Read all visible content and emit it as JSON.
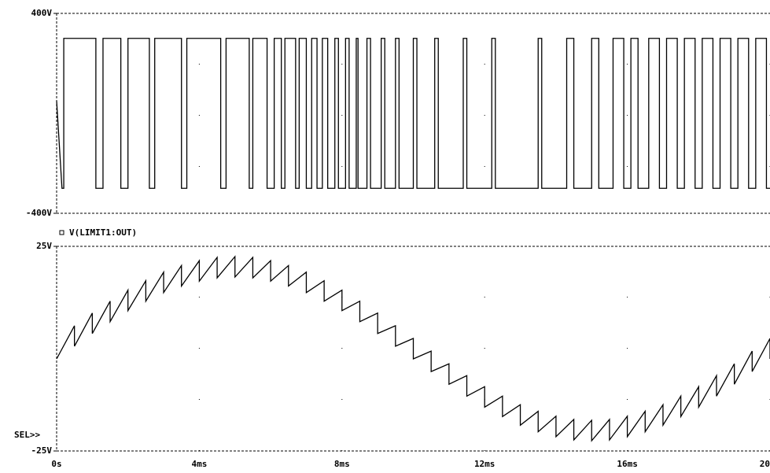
{
  "chart_data": [
    {
      "type": "line",
      "color": "#000000",
      "xlim": [
        0,
        20
      ],
      "ylim": [
        -400,
        400
      ],
      "yticks": [
        {
          "value": 400,
          "label": "400V"
        },
        {
          "value": -400,
          "label": "-400V"
        }
      ],
      "grid": true,
      "x": [
        0,
        0.15,
        0.2,
        0.2,
        1.1,
        1.1,
        1.3,
        1.3,
        1.8,
        1.8,
        2.0,
        2.0,
        2.6,
        2.6,
        2.75,
        2.75,
        3.5,
        3.5,
        3.65,
        3.65,
        4.6,
        4.6,
        4.75,
        4.75,
        5.4,
        5.4,
        5.5,
        5.5,
        5.9,
        5.9,
        6.1,
        6.1,
        6.3,
        6.3,
        6.4,
        6.4,
        6.7,
        6.7,
        6.8,
        6.8,
        7.0,
        7.0,
        7.15,
        7.15,
        7.3,
        7.3,
        7.45,
        7.45,
        7.6,
        7.6,
        7.8,
        7.8,
        7.9,
        7.9,
        8.1,
        8.1,
        8.2,
        8.2,
        8.4,
        8.4,
        8.45,
        8.45,
        8.7,
        8.7,
        8.8,
        8.8,
        9.1,
        9.1,
        9.2,
        9.2,
        9.5,
        9.5,
        9.6,
        9.6,
        10.0,
        10.0,
        10.1,
        10.1,
        10.6,
        10.6,
        10.7,
        10.7,
        11.4,
        11.4,
        11.5,
        11.5,
        12.2,
        12.2,
        12.3,
        12.3,
        13.5,
        13.5,
        13.6,
        13.6,
        14.3,
        14.3,
        14.5,
        14.5,
        15.0,
        15.0,
        15.2,
        15.2,
        15.6,
        15.6,
        15.9,
        15.9,
        16.1,
        16.1,
        16.3,
        16.3,
        16.6,
        16.6,
        16.9,
        16.9,
        17.1,
        17.1,
        17.4,
        17.4,
        17.6,
        17.6,
        17.9,
        17.9,
        18.1,
        18.1,
        18.4,
        18.4,
        18.6,
        18.6,
        18.9,
        18.9,
        19.1,
        19.1,
        19.4,
        19.4,
        19.6,
        19.6,
        19.9,
        19.9,
        20
      ],
      "values": [
        50,
        -300,
        -300,
        300,
        300,
        -300,
        -300,
        300,
        300,
        -300,
        -300,
        300,
        300,
        -300,
        -300,
        300,
        300,
        -300,
        -300,
        300,
        300,
        -300,
        -300,
        300,
        300,
        -300,
        -300,
        300,
        300,
        -300,
        -300,
        300,
        300,
        -300,
        -300,
        300,
        300,
        -300,
        -300,
        300,
        300,
        -300,
        -300,
        300,
        300,
        -300,
        -300,
        300,
        300,
        -300,
        -300,
        300,
        300,
        -300,
        -300,
        300,
        300,
        -300,
        -300,
        300,
        300,
        -300,
        -300,
        300,
        300,
        -300,
        -300,
        300,
        300,
        -300,
        -300,
        300,
        300,
        -300,
        -300,
        300,
        300,
        -300,
        -300,
        300,
        300,
        -300,
        -300,
        300,
        300,
        -300,
        -300,
        300,
        300,
        -300,
        -300,
        300,
        300,
        -300,
        -300,
        300,
        300,
        -300,
        -300,
        300,
        300,
        -300,
        -300,
        300,
        300,
        -300,
        -300,
        300,
        300,
        -300,
        -300,
        300,
        300,
        -300,
        -300,
        300,
        300,
        -300,
        -300,
        300,
        300,
        -300,
        -300,
        300,
        300,
        -300,
        -300,
        300,
        300,
        -300,
        -300,
        300,
        300,
        -300,
        -300,
        300,
        300,
        -300,
        -300
      ]
    },
    {
      "type": "line",
      "xlim": [
        0,
        20
      ],
      "ylim": [
        -25,
        25
      ],
      "xticks": [
        {
          "value": 0,
          "label": "0s"
        },
        {
          "value": 4,
          "label": "4ms"
        },
        {
          "value": 8,
          "label": "8ms"
        },
        {
          "value": 12,
          "label": "12ms"
        },
        {
          "value": 16,
          "label": "16ms"
        },
        {
          "value": 20,
          "label": "20ms"
        }
      ],
      "yticks": [
        {
          "value": 25,
          "label": "25V"
        },
        {
          "value": -25,
          "label": "-25V"
        }
      ],
      "grid": true,
      "annotation": "SEL>>",
      "x": [
        0,
        0.5,
        0.5,
        1,
        1,
        1.5,
        1.5,
        2,
        2,
        2.5,
        2.5,
        3,
        3,
        3.5,
        3.5,
        4,
        4,
        4.5,
        4.5,
        5,
        5,
        5.5,
        5.5,
        6,
        6,
        6.5,
        6.5,
        7,
        7,
        7.5,
        7.5,
        8,
        8,
        8.5,
        8.5,
        9,
        9,
        9.5,
        9.5,
        10,
        10,
        10.5,
        10.5,
        11,
        11,
        11.5,
        11.5,
        12,
        12,
        12.5,
        12.5,
        13,
        13,
        13.5,
        13.5,
        14,
        14,
        14.5,
        14.5,
        15,
        15,
        15.5,
        15.5,
        16,
        16,
        16.5,
        16.5,
        17,
        17,
        17.5,
        17.5,
        18,
        18,
        18.5,
        18.5,
        19,
        19,
        19.5,
        19.5,
        20,
        20
      ],
      "series": [
        {
          "name": "V(LIMIT1:OUT)",
          "color": "#000000",
          "values": [
            -2.5,
            5.6,
            0.6,
            8.7,
            3.7,
            11.6,
            6.6,
            14.3,
            9.3,
            16.6,
            11.6,
            18.7,
            13.7,
            20.3,
            15.3,
            21.5,
            16.5,
            22.3,
            17.3,
            22.5,
            17.5,
            22.3,
            17.3,
            21.5,
            16.5,
            20.3,
            15.3,
            18.7,
            13.7,
            16.6,
            11.6,
            14.3,
            9.3,
            11.6,
            6.6,
            8.7,
            3.7,
            5.6,
            0.6,
            2.5,
            -2.5,
            -0.6,
            -5.6,
            -3.7,
            -8.7,
            -6.6,
            -11.6,
            -9.3,
            -14.3,
            -11.6,
            -16.6,
            -13.7,
            -18.7,
            -15.3,
            -20.3,
            -16.5,
            -21.5,
            -17.3,
            -22.3,
            -17.5,
            -22.5,
            -17.3,
            -22.3,
            -16.5,
            -21.5,
            -15.3,
            -20.3,
            -13.7,
            -18.7,
            -11.6,
            -16.6,
            -9.3,
            -14.3,
            -6.6,
            -11.6,
            -3.7,
            -8.7,
            -0.6,
            -5.6,
            2.5,
            -2.5
          ]
        }
      ]
    }
  ]
}
